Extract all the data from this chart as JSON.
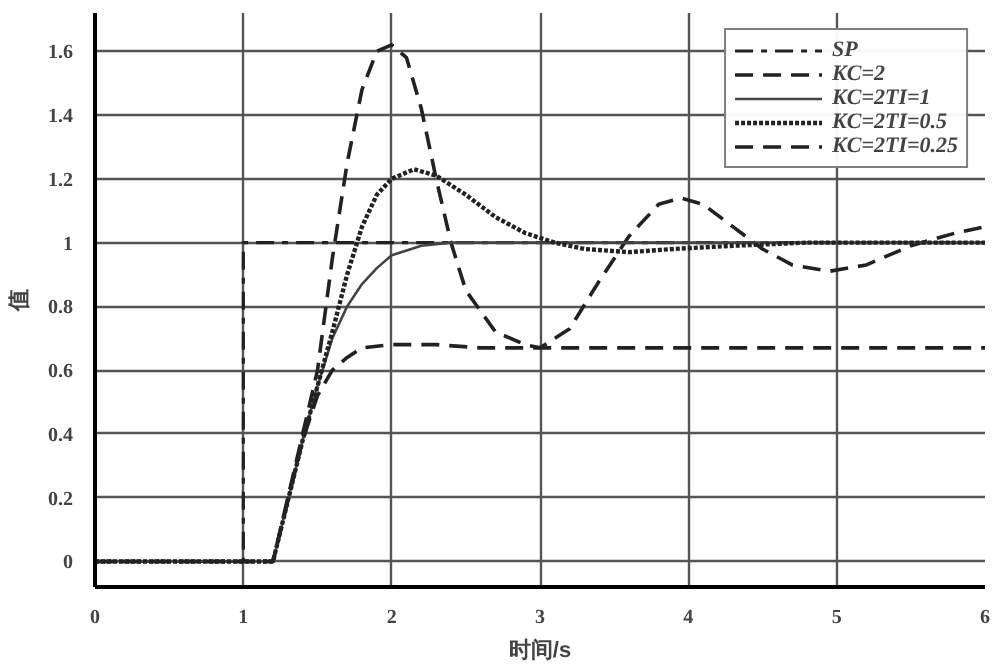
{
  "chart_data": {
    "type": "line",
    "xlabel": "时间/s",
    "ylabel": "值",
    "xlim": [
      0,
      6
    ],
    "ylim": [
      -0.08,
      1.72
    ],
    "xticks": [
      0,
      1,
      2,
      3,
      4,
      5,
      6
    ],
    "yticks": [
      0,
      0.2,
      0.4,
      0.6,
      0.8,
      1,
      1.2,
      1.4,
      1.6
    ],
    "grid": true,
    "legend": "top right",
    "marker": "none",
    "series": [
      {
        "name": "SP",
        "color": "#222222",
        "line_style": "dashdot",
        "x": [
          0,
          1,
          1,
          6
        ],
        "values": [
          0,
          0,
          1,
          1
        ]
      },
      {
        "name": "KC=2",
        "color": "#222222",
        "line_style": "dashed",
        "x": [
          0,
          1.2,
          1.4,
          1.5,
          1.6,
          1.7,
          1.8,
          1.9,
          2.0,
          2.1,
          2.2,
          2.3,
          2.4,
          2.5,
          2.7,
          2.9,
          3.0,
          3.2,
          3.4,
          3.6,
          3.8,
          3.95,
          4.1,
          4.3,
          4.5,
          4.7,
          4.95,
          5.2,
          5.5,
          5.8,
          6
        ],
        "values": [
          0,
          0,
          0.4,
          0.6,
          0.95,
          1.25,
          1.48,
          1.6,
          1.62,
          1.58,
          1.42,
          1.2,
          1.0,
          0.85,
          0.72,
          0.68,
          0.67,
          0.73,
          0.88,
          1.02,
          1.12,
          1.14,
          1.12,
          1.05,
          0.98,
          0.93,
          0.91,
          0.93,
          0.99,
          1.03,
          1.05
        ]
      },
      {
        "name": "KC=2TI=1",
        "color": "#444444",
        "line_style": "solid",
        "x": [
          0,
          1.2,
          1.4,
          1.5,
          1.6,
          1.7,
          1.8,
          1.9,
          2.0,
          2.2,
          2.4,
          6
        ],
        "values": [
          0,
          0,
          0.38,
          0.55,
          0.7,
          0.8,
          0.87,
          0.92,
          0.96,
          0.99,
          1.0,
          1.0
        ]
      },
      {
        "name": "KC=2TI=0.5",
        "color": "#222222",
        "line_style": "dotted",
        "x": [
          0,
          1.2,
          1.4,
          1.5,
          1.6,
          1.7,
          1.8,
          1.9,
          2.0,
          2.15,
          2.3,
          2.5,
          2.7,
          2.9,
          3.1,
          3.3,
          3.6,
          3.9,
          4.3,
          4.8,
          6
        ],
        "values": [
          0,
          0,
          0.38,
          0.55,
          0.72,
          0.9,
          1.05,
          1.15,
          1.2,
          1.23,
          1.21,
          1.15,
          1.08,
          1.03,
          1.0,
          0.98,
          0.97,
          0.98,
          0.99,
          1.0,
          1.0
        ]
      },
      {
        "name": "KC=2TI=0.25",
        "color": "#222222",
        "line_style": "dashed",
        "x": [
          0,
          1.2,
          1.4,
          1.5,
          1.6,
          1.7,
          1.8,
          2.0,
          2.3,
          2.6,
          6
        ],
        "values": [
          0,
          0,
          0.38,
          0.52,
          0.6,
          0.64,
          0.67,
          0.68,
          0.68,
          0.67,
          0.67
        ]
      }
    ]
  }
}
